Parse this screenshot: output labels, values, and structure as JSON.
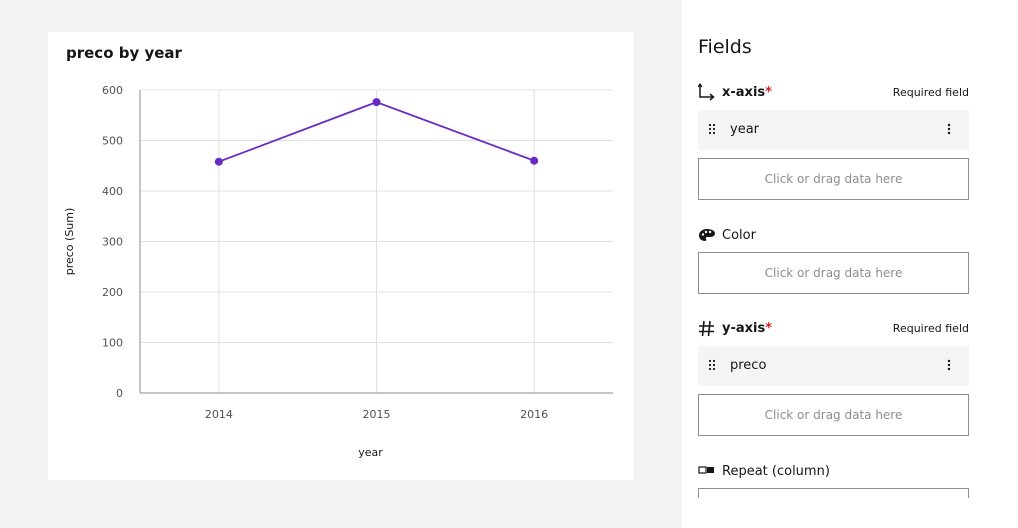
{
  "chart_data": {
    "type": "line",
    "title": "preco by year",
    "xlabel": "year",
    "ylabel": "preco (Sum)",
    "categories": [
      "2014",
      "2015",
      "2016"
    ],
    "series": [
      {
        "values": [
          458,
          576,
          460
        ]
      }
    ],
    "ylim": [
      0,
      600
    ],
    "yticks": [
      "0",
      "100",
      "200",
      "300",
      "400",
      "500",
      "600"
    ],
    "grid": true,
    "line_color": "#6929c4"
  },
  "panel": {
    "title": "Fields",
    "x_axis": {
      "label": "x-axis",
      "required_marker": "*",
      "required_text": "Required field",
      "chip_label": "year",
      "dropzone": "Click or drag data here"
    },
    "color": {
      "label": "Color",
      "dropzone": "Click or drag data here"
    },
    "y_axis": {
      "label": "y-axis",
      "required_marker": "*",
      "required_text": "Required field",
      "chip_label": "preco",
      "dropzone": "Click or drag data here"
    },
    "repeat": {
      "label": "Repeat (column)"
    }
  }
}
